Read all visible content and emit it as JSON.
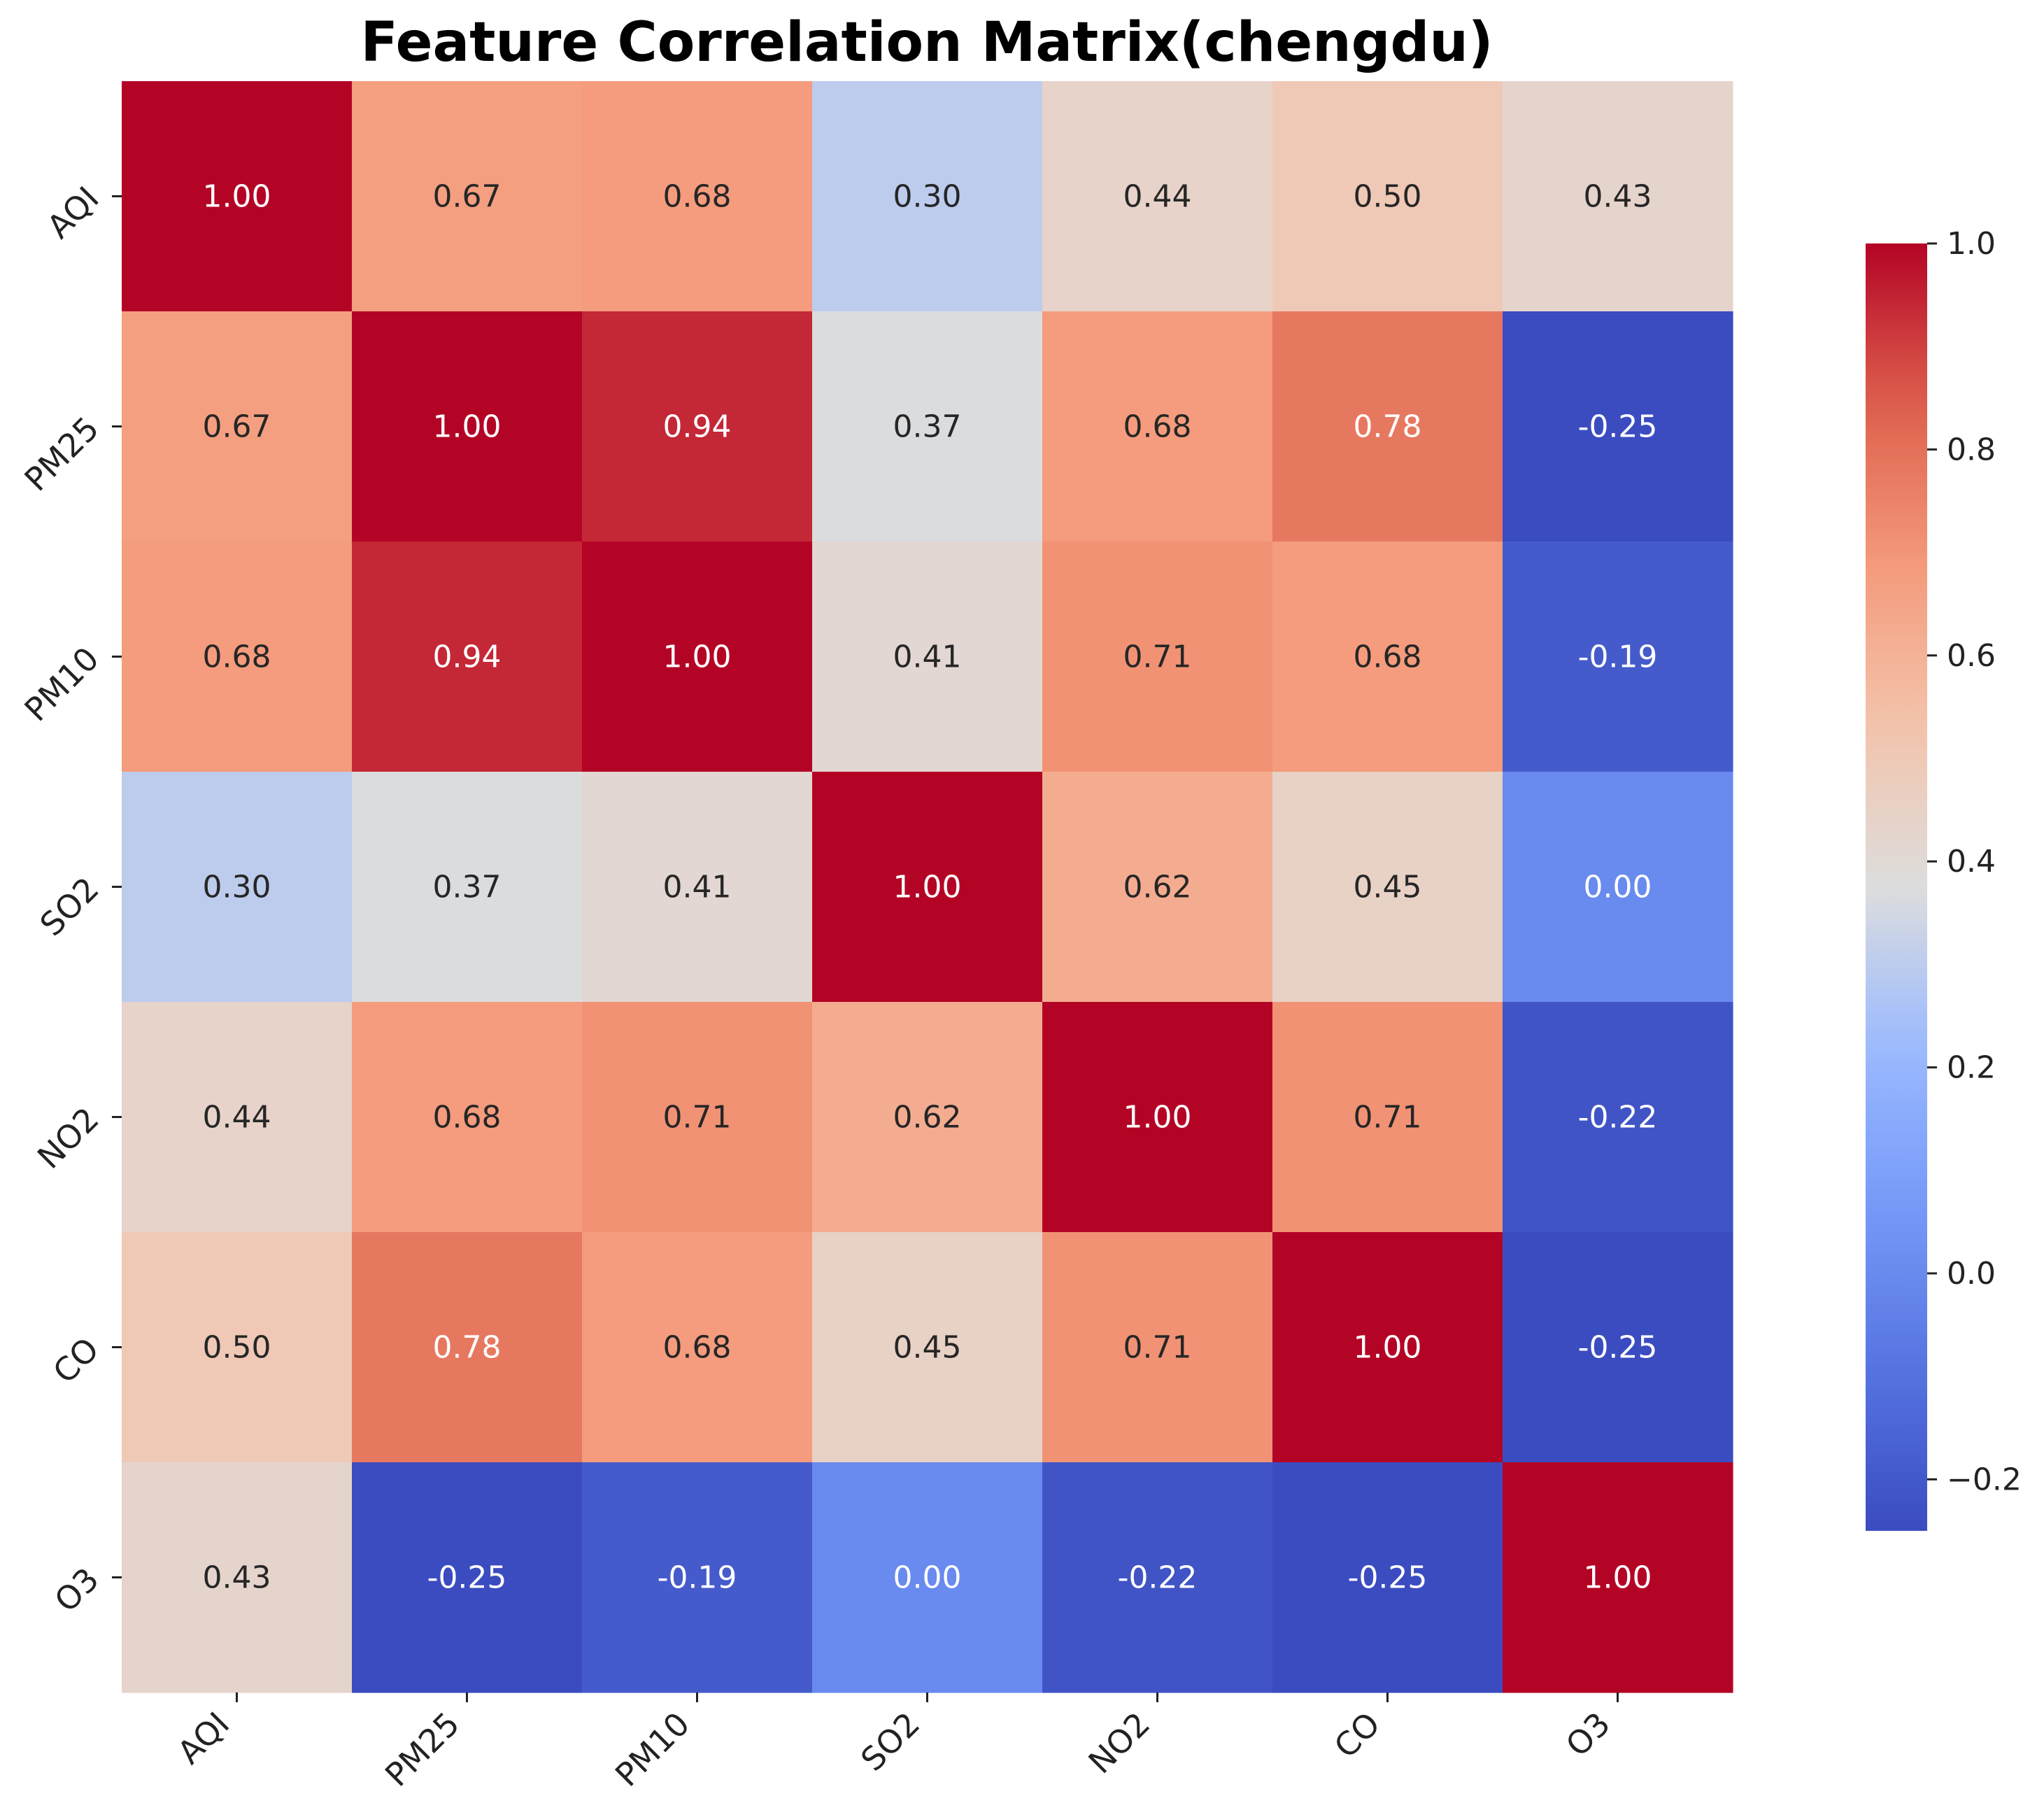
{
  "chart_data": {
    "type": "heatmap",
    "title": "Feature Correlation Matrix(chengdu)",
    "xlabel": "",
    "ylabel": "",
    "variables": [
      "AQI",
      "PM25",
      "PM10",
      "SO2",
      "NO2",
      "CO",
      "O3"
    ],
    "matrix": [
      [
        1.0,
        0.67,
        0.68,
        0.3,
        0.44,
        0.5,
        0.43
      ],
      [
        0.67,
        1.0,
        0.94,
        0.37,
        0.68,
        0.78,
        -0.25
      ],
      [
        0.68,
        0.94,
        1.0,
        0.41,
        0.71,
        0.68,
        -0.19
      ],
      [
        0.3,
        0.37,
        0.41,
        1.0,
        0.62,
        0.45,
        0.0
      ],
      [
        0.44,
        0.68,
        0.71,
        0.62,
        1.0,
        0.71,
        -0.22
      ],
      [
        0.5,
        0.78,
        0.68,
        0.45,
        0.71,
        1.0,
        -0.25
      ],
      [
        0.43,
        -0.25,
        -0.19,
        0.0,
        -0.22,
        -0.25,
        1.0
      ]
    ],
    "cell_labels": [
      [
        "1.00",
        "0.67",
        "0.68",
        "0.30",
        "0.44",
        "0.50",
        "0.43"
      ],
      [
        "0.67",
        "1.00",
        "0.94",
        "0.37",
        "0.68",
        "0.78",
        "-0.25"
      ],
      [
        "0.68",
        "0.94",
        "1.00",
        "0.41",
        "0.71",
        "0.68",
        "-0.19"
      ],
      [
        "0.30",
        "0.37",
        "0.41",
        "1.00",
        "0.62",
        "0.45",
        "0.00"
      ],
      [
        "0.44",
        "0.68",
        "0.71",
        "0.62",
        "1.00",
        "0.71",
        "-0.22"
      ],
      [
        "0.50",
        "0.78",
        "0.68",
        "0.45",
        "0.71",
        "1.00",
        "-0.25"
      ],
      [
        "0.43",
        "-0.25",
        "-0.19",
        "0.00",
        "-0.22",
        "-0.25",
        "1.00"
      ]
    ],
    "colormap": "coolwarm",
    "color_range": [
      -0.25,
      1.0
    ],
    "colorbar": {
      "ticks": [
        1.0,
        0.8,
        0.6,
        0.4,
        0.2,
        0.0,
        -0.2
      ],
      "tick_labels": [
        "1.0",
        "0.8",
        "0.6",
        "0.4",
        "0.2",
        "0.0",
        "−0.2"
      ],
      "placement": "right"
    }
  }
}
